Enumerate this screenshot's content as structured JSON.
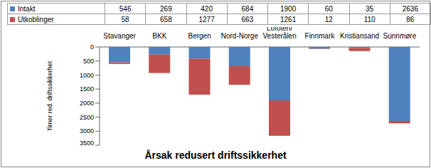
{
  "chart_data": {
    "type": "bar",
    "title": "Årsak redusert driftssikkerhet",
    "y_label": "Timer red. driftssikkerhet",
    "categories": [
      "Stavanger",
      "BKK",
      "Bergen",
      "Nord-Norge",
      "Lofoten/Vesterålen",
      "Finnmark",
      "Kristiansand",
      "Sunnmøre"
    ],
    "series": [
      {
        "name": "Intakt",
        "color": "#4f81bd",
        "values": [
          546,
          269,
          420,
          684,
          1900,
          60,
          35,
          2636
        ]
      },
      {
        "name": "Utkoblinger",
        "color": "#c0504d",
        "values": [
          58,
          658,
          1277,
          663,
          1261,
          12,
          110,
          86
        ]
      }
    ],
    "ylim": [
      0,
      3500
    ],
    "yticks": [
      0,
      500,
      1000,
      1500,
      2000,
      2500,
      3000,
      3500
    ],
    "stacked": true,
    "grid": false
  }
}
